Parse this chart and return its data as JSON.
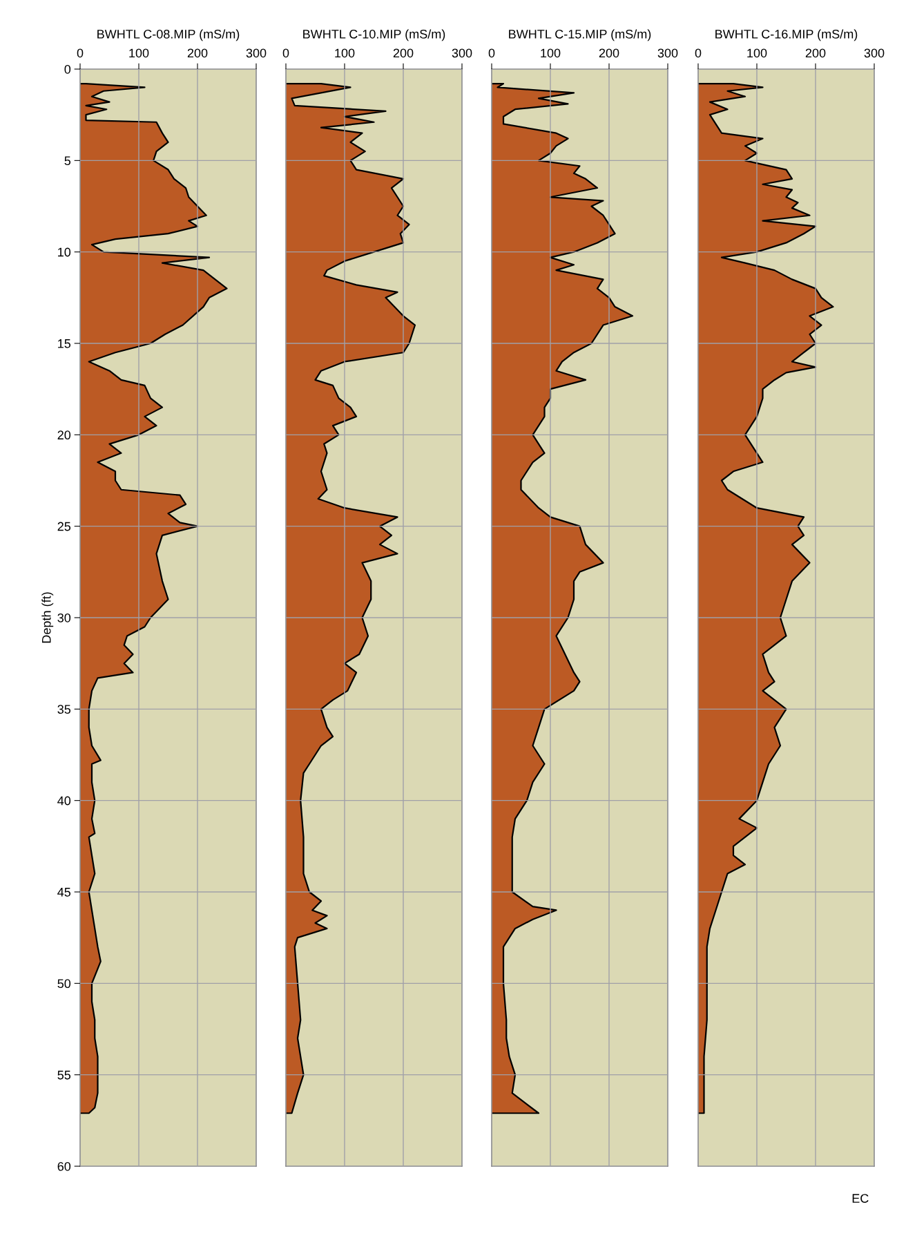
{
  "chart_data": [
    {
      "type": "area",
      "orientation": "horizontal",
      "title": "BWHTL C-08.MIP (mS/m)",
      "ylabel": "Depth (ft)",
      "xlim": [
        0,
        300
      ],
      "xticks": [
        0,
        100,
        200,
        300
      ],
      "ylim": [
        60,
        0
      ],
      "yticks": [
        0,
        5,
        10,
        15,
        20,
        25,
        30,
        35,
        40,
        45,
        50,
        55,
        60
      ],
      "grid": true,
      "legend": false,
      "series": [
        {
          "color": "#bc5a24",
          "x": [
            0.8,
            1.0,
            1.2,
            1.5,
            1.8,
            2.0,
            2.2,
            2.5,
            2.8,
            2.9,
            3.5,
            4,
            4.5,
            5,
            5.5,
            6,
            6.5,
            7,
            7.5,
            8,
            8.3,
            8.6,
            9,
            9.3,
            9.6,
            10,
            10.3,
            10.6,
            11,
            11.5,
            12,
            12.5,
            13,
            14,
            14.5,
            15,
            15.5,
            16,
            16.5,
            17,
            17.3,
            18,
            18.5,
            19,
            19.5,
            20,
            20.5,
            21,
            21.5,
            22,
            22.5,
            23,
            23.3,
            23.8,
            24.3,
            24.8,
            25,
            25.5,
            26.5,
            28,
            29,
            30,
            30.5,
            31,
            31.5,
            32,
            32.5,
            33,
            33.3,
            34,
            35,
            36,
            37,
            37.8,
            38,
            39,
            40,
            41,
            41.8,
            42,
            43,
            44,
            45,
            46,
            47,
            48,
            48.8,
            50,
            51,
            52,
            53,
            54,
            55,
            56,
            56.8,
            57.1
          ],
          "values": [
            10,
            110,
            40,
            20,
            50,
            10,
            45,
            10,
            10,
            130,
            140,
            150,
            130,
            125,
            150,
            160,
            180,
            185,
            200,
            215,
            185,
            200,
            150,
            60,
            20,
            40,
            220,
            140,
            210,
            230,
            250,
            220,
            210,
            175,
            145,
            120,
            60,
            15,
            50,
            70,
            110,
            120,
            140,
            110,
            130,
            100,
            50,
            70,
            30,
            60,
            60,
            70,
            170,
            180,
            150,
            170,
            200,
            140,
            130,
            140,
            150,
            120,
            110,
            80,
            75,
            90,
            75,
            90,
            30,
            20,
            15,
            15,
            20,
            35,
            20,
            20,
            25,
            20,
            25,
            15,
            20,
            25,
            15,
            20,
            25,
            30,
            35,
            20,
            20,
            25,
            25,
            30,
            30,
            30,
            25,
            15
          ]
        }
      ]
    },
    {
      "type": "area",
      "orientation": "horizontal",
      "title": "BWHTL C-10.MIP (mS/m)",
      "xlim": [
        0,
        300
      ],
      "xticks": [
        0,
        100,
        200,
        300
      ],
      "ylim": [
        60,
        0
      ],
      "yticks": [
        0,
        5,
        10,
        15,
        20,
        25,
        30,
        35,
        40,
        45,
        50,
        55,
        60
      ],
      "tick_labels": "x",
      "grid": true,
      "legend": false,
      "series": [
        {
          "color": "#bc5a24",
          "x": [
            0.8,
            1.0,
            1.3,
            1.6,
            2.0,
            2.3,
            2.6,
            2.9,
            3.2,
            3.5,
            4,
            4.5,
            5,
            5.5,
            6,
            6.5,
            7,
            7.5,
            8,
            8.5,
            9,
            9.5,
            10,
            10.5,
            11,
            11.3,
            11.8,
            12.2,
            12.5,
            13,
            13.5,
            14,
            15,
            15.5,
            16,
            16.5,
            17,
            17.3,
            18,
            18.5,
            19,
            19.5,
            20,
            20.5,
            21,
            22,
            23,
            23.5,
            24,
            24.5,
            25,
            25.5,
            26,
            26.5,
            27,
            28,
            29,
            30,
            31,
            32,
            32.5,
            33,
            34,
            34.5,
            35,
            36,
            36.5,
            37,
            38,
            38.5,
            40,
            42,
            44,
            45,
            45.5,
            46,
            46.3,
            46.7,
            47,
            47.5,
            48,
            50,
            52,
            53,
            54,
            55,
            56,
            57.1
          ],
          "values": [
            60,
            110,
            60,
            10,
            15,
            170,
            100,
            150,
            60,
            130,
            110,
            135,
            110,
            120,
            200,
            180,
            190,
            200,
            190,
            210,
            195,
            200,
            150,
            100,
            70,
            65,
            120,
            190,
            170,
            185,
            200,
            220,
            210,
            200,
            100,
            60,
            50,
            80,
            90,
            110,
            120,
            80,
            90,
            65,
            70,
            60,
            70,
            55,
            100,
            190,
            160,
            180,
            160,
            190,
            130,
            145,
            145,
            130,
            140,
            125,
            100,
            120,
            105,
            80,
            60,
            70,
            80,
            60,
            40,
            30,
            25,
            30,
            30,
            40,
            60,
            45,
            70,
            50,
            70,
            20,
            15,
            20,
            25,
            20,
            25,
            30,
            20,
            10
          ]
        }
      ]
    },
    {
      "type": "area",
      "orientation": "horizontal",
      "title": "BWHTL C-15.MIP (mS/m)",
      "xlim": [
        0,
        300
      ],
      "xticks": [
        0,
        100,
        200,
        300
      ],
      "ylim": [
        60,
        0
      ],
      "yticks": [
        0,
        5,
        10,
        15,
        20,
        25,
        30,
        35,
        40,
        45,
        50,
        55,
        60
      ],
      "tick_labels": "x",
      "grid": true,
      "legend": false,
      "series": [
        {
          "color": "#bc5a24",
          "x": [
            0.8,
            1.0,
            1.3,
            1.6,
            1.9,
            2.2,
            2.6,
            3.0,
            3.5,
            3.8,
            4.2,
            4.6,
            5,
            5.3,
            5.7,
            6,
            6.5,
            7,
            7.2,
            7.5,
            8,
            8.5,
            9,
            9.5,
            10,
            10.3,
            10.7,
            11,
            11.5,
            12,
            12.5,
            13,
            13.5,
            14,
            15,
            15.5,
            16,
            16.5,
            17,
            17.5,
            18,
            18.5,
            19,
            19.5,
            20,
            20.5,
            21,
            21.5,
            22,
            22.5,
            23,
            24,
            24.5,
            25,
            26,
            27,
            27.5,
            28,
            29,
            30,
            31,
            32,
            33,
            33.5,
            34,
            35,
            36,
            37,
            38,
            39,
            40,
            40.5,
            41,
            42,
            43,
            44,
            45,
            45.8,
            46,
            46.5,
            47,
            48,
            50,
            52,
            53,
            54,
            55,
            56,
            57.1
          ],
          "values": [
            20,
            10,
            140,
            80,
            130,
            40,
            20,
            20,
            110,
            130,
            110,
            100,
            80,
            150,
            140,
            160,
            180,
            100,
            190,
            170,
            190,
            200,
            210,
            180,
            140,
            100,
            140,
            110,
            190,
            180,
            200,
            210,
            240,
            190,
            170,
            140,
            120,
            110,
            160,
            100,
            100,
            90,
            90,
            80,
            70,
            80,
            90,
            70,
            60,
            50,
            50,
            80,
            100,
            150,
            160,
            190,
            150,
            140,
            140,
            130,
            110,
            125,
            140,
            150,
            140,
            90,
            80,
            70,
            90,
            70,
            60,
            50,
            40,
            35,
            35,
            35,
            35,
            70,
            110,
            70,
            40,
            20,
            20,
            25,
            25,
            30,
            40,
            35,
            80
          ]
        }
      ]
    },
    {
      "type": "area",
      "orientation": "horizontal",
      "title": "BWHTL C-16.MIP (mS/m)",
      "xlim": [
        0,
        300
      ],
      "xticks": [
        0,
        100,
        200,
        300
      ],
      "ylim": [
        60,
        0
      ],
      "yticks": [
        0,
        5,
        10,
        15,
        20,
        25,
        30,
        35,
        40,
        45,
        50,
        55,
        60
      ],
      "tick_labels": "x",
      "grid": true,
      "legend": false,
      "annotations": [
        "EC"
      ],
      "series": [
        {
          "color": "#bc5a24",
          "x": [
            0.8,
            1.0,
            1.2,
            1.5,
            1.8,
            2.2,
            2.5,
            3,
            3.5,
            3.8,
            4.2,
            4.6,
            5,
            5.5,
            6,
            6.3,
            6.6,
            7,
            7.3,
            7.6,
            8,
            8.3,
            8.6,
            9,
            9.5,
            10,
            10.3,
            10.6,
            11,
            11.5,
            12,
            12.5,
            13,
            13.5,
            14,
            14.5,
            15,
            15.5,
            16,
            16.3,
            16.6,
            17,
            17.5,
            18,
            19,
            20,
            20.5,
            21,
            21.5,
            22,
            22.5,
            23,
            24,
            24.5,
            25,
            25.5,
            26,
            27,
            28,
            29,
            30,
            31,
            32,
            33,
            33.5,
            34,
            35,
            36,
            37,
            38,
            39,
            40,
            41,
            41.5,
            42,
            42.5,
            43,
            43.5,
            44,
            45,
            46,
            47,
            48,
            50,
            52,
            54,
            56,
            57.1
          ],
          "values": [
            60,
            110,
            50,
            80,
            20,
            50,
            20,
            30,
            40,
            110,
            80,
            100,
            80,
            150,
            160,
            110,
            160,
            150,
            170,
            160,
            190,
            110,
            200,
            180,
            150,
            100,
            40,
            80,
            130,
            160,
            200,
            210,
            230,
            190,
            210,
            190,
            200,
            180,
            160,
            200,
            150,
            130,
            110,
            110,
            100,
            80,
            90,
            100,
            110,
            60,
            40,
            50,
            100,
            180,
            170,
            180,
            160,
            190,
            160,
            150,
            140,
            150,
            110,
            120,
            130,
            110,
            150,
            130,
            140,
            120,
            110,
            100,
            70,
            100,
            80,
            60,
            60,
            80,
            50,
            40,
            30,
            20,
            15,
            15,
            15,
            10,
            10,
            10
          ]
        }
      ]
    }
  ]
}
